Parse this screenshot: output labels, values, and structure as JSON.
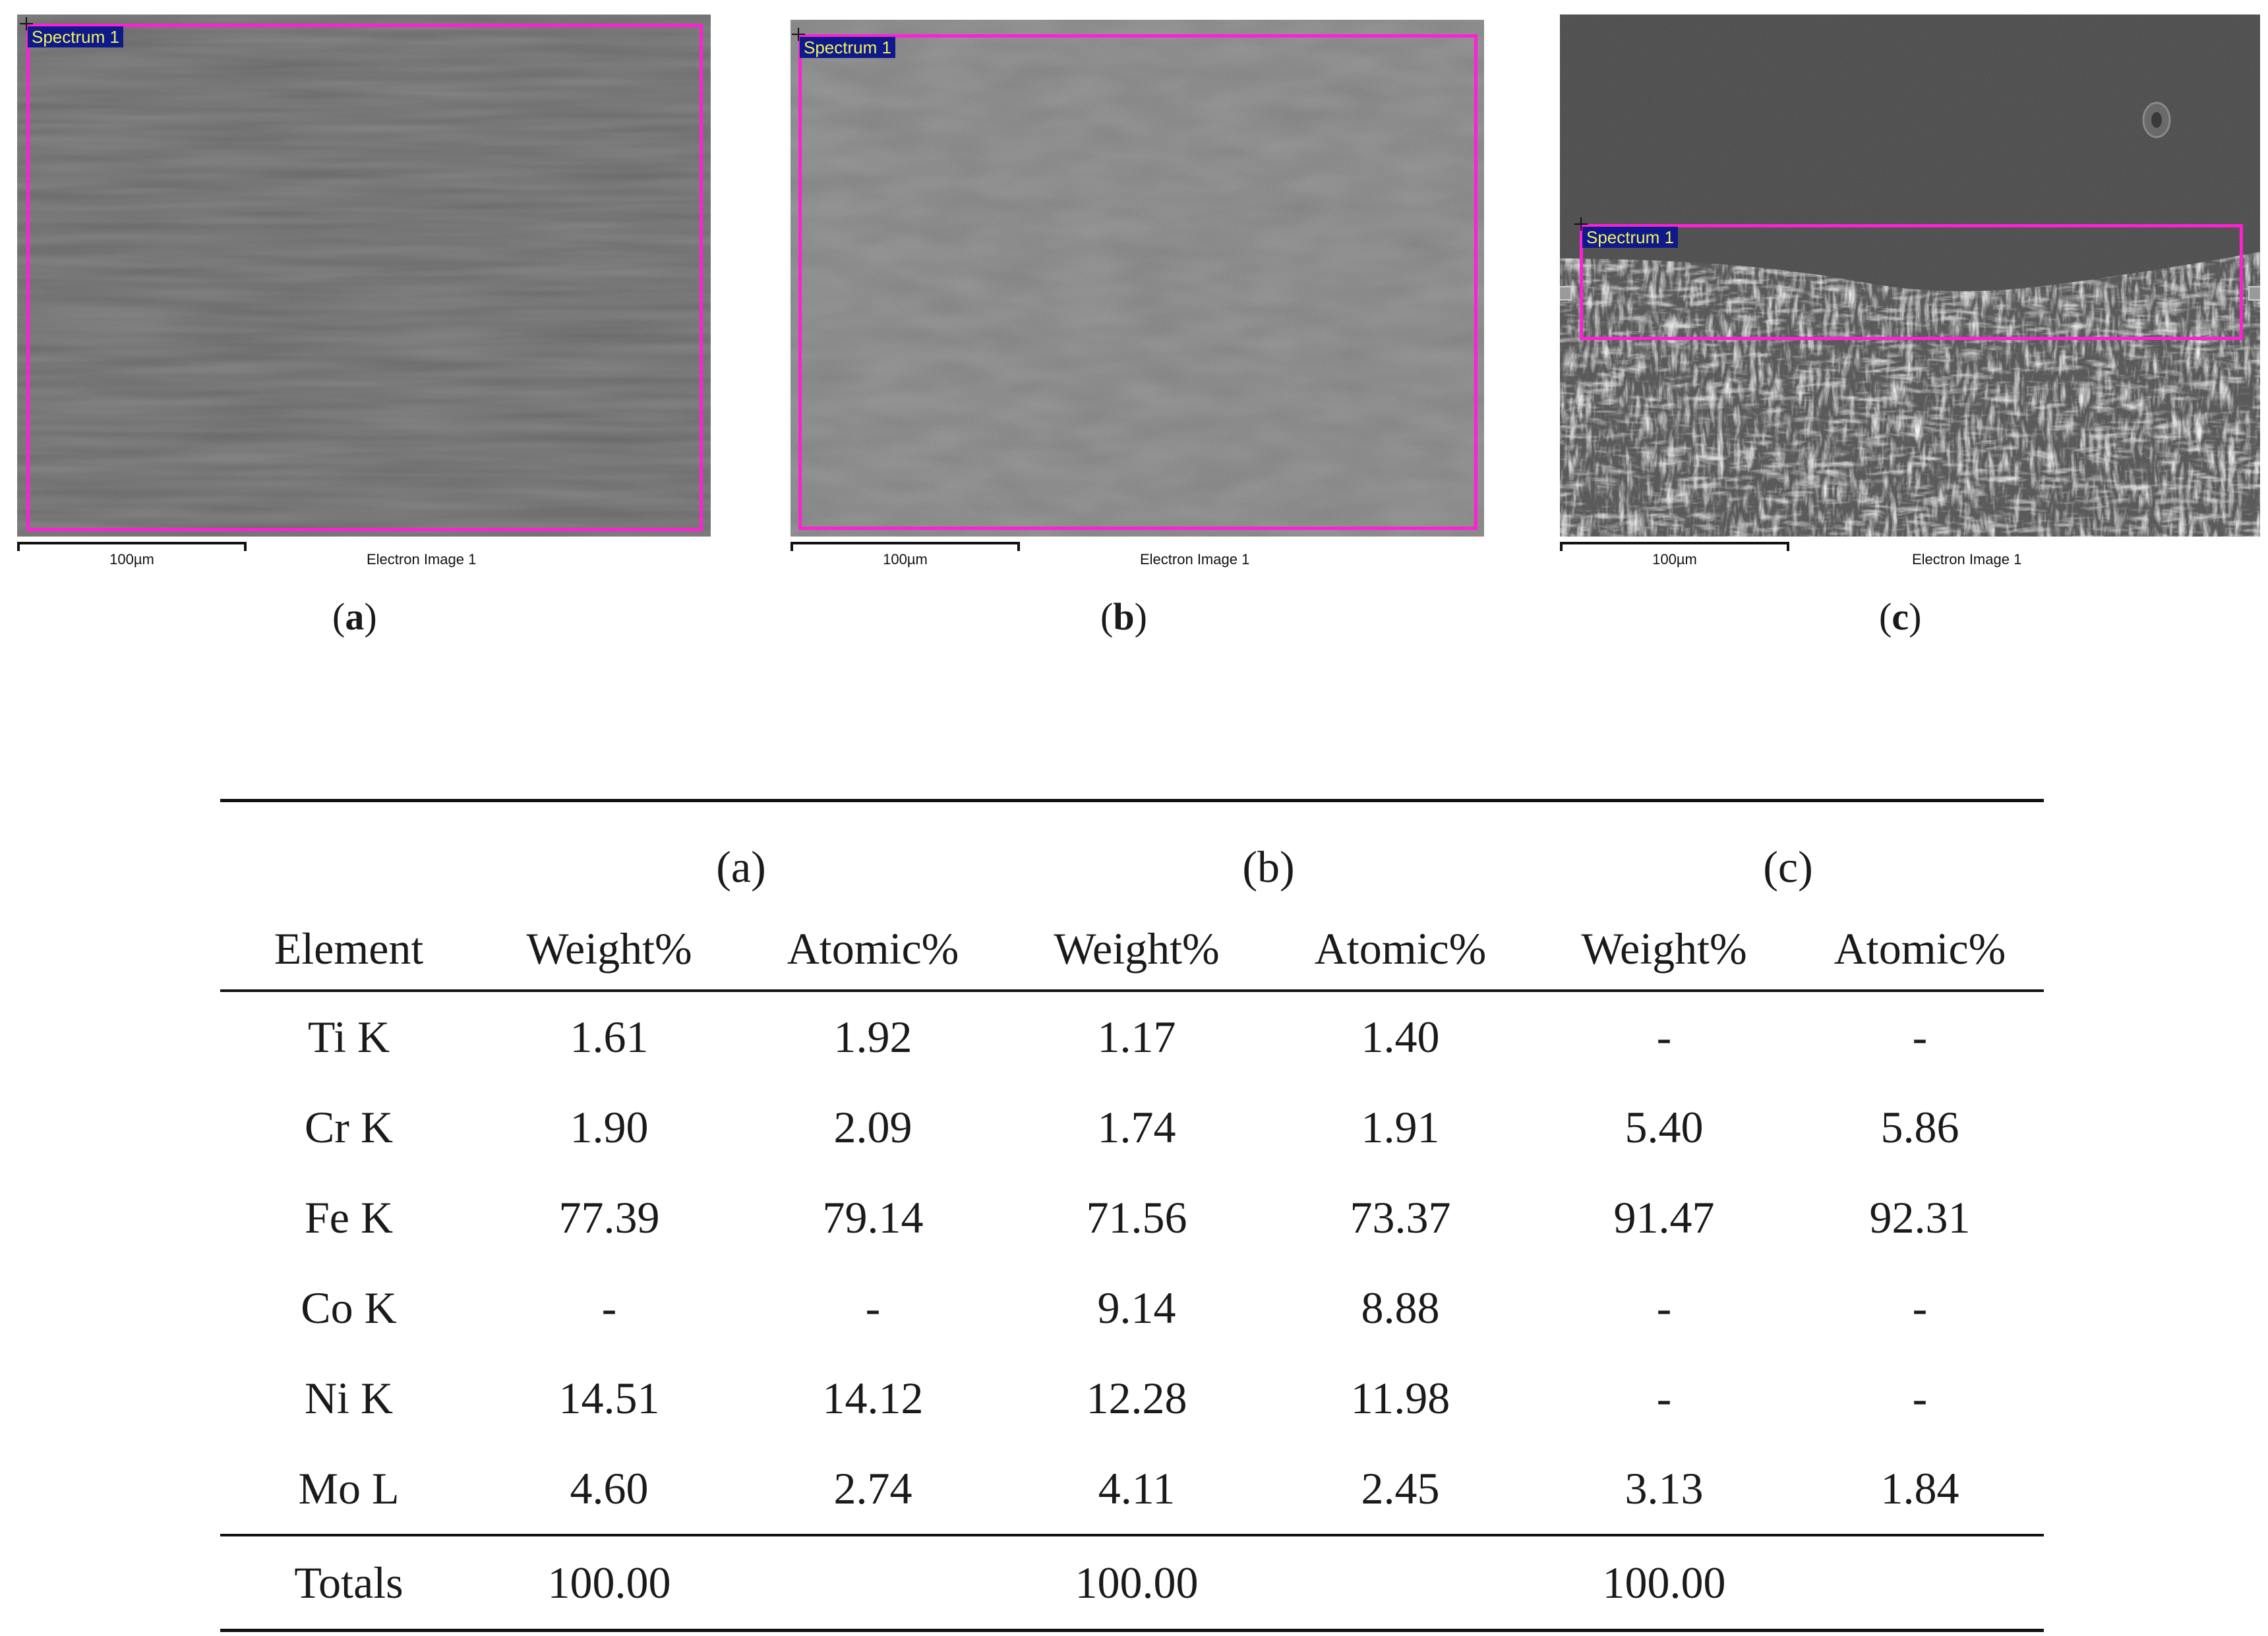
{
  "panels": [
    {
      "id": "a",
      "spectrum_label": "Spectrum 1",
      "scale_label": "100µm",
      "image_caption": "Electron Image 1",
      "label_open": "(",
      "label_letter": "a",
      "label_close": ")"
    },
    {
      "id": "b",
      "spectrum_label": "Spectrum 1",
      "scale_label": "100µm",
      "image_caption": "Electron Image 1",
      "label_open": "(",
      "label_letter": "b",
      "label_close": ")"
    },
    {
      "id": "c",
      "spectrum_label": "Spectrum 1",
      "scale_label": "100µm",
      "image_caption": "Electron Image 1",
      "label_open": "(",
      "label_letter": "c",
      "label_close": ")"
    }
  ],
  "colors": {
    "spectrum_box": "#ff1fd6",
    "spectrum_tag_bg": "#0f1a8a",
    "spectrum_tag_text": "#f2f25a"
  },
  "table": {
    "element_header": "Element",
    "groups": [
      "(a)",
      "(b)",
      "(c)"
    ],
    "subheaders": [
      "Weight%",
      "Atomic%",
      "Weight%",
      "Atomic%",
      "Weight%",
      "Atomic%"
    ],
    "rows": [
      {
        "element": "Ti K",
        "values": [
          "1.61",
          "1.92",
          "1.17",
          "1.40",
          "-",
          "-"
        ]
      },
      {
        "element": "Cr K",
        "values": [
          "1.90",
          "2.09",
          "1.74",
          "1.91",
          "5.40",
          "5.86"
        ]
      },
      {
        "element": "Fe K",
        "values": [
          "77.39",
          "79.14",
          "71.56",
          "73.37",
          "91.47",
          "92.31"
        ]
      },
      {
        "element": "Co K",
        "values": [
          "-",
          "-",
          "9.14",
          "8.88",
          "-",
          "-"
        ]
      },
      {
        "element": "Ni K",
        "values": [
          "14.51",
          "14.12",
          "12.28",
          "11.98",
          "-",
          "-"
        ]
      },
      {
        "element": "Mo L",
        "values": [
          "4.60",
          "2.74",
          "4.11",
          "2.45",
          "3.13",
          "1.84"
        ]
      }
    ],
    "totals": {
      "label": "Totals",
      "values": [
        "100.00",
        "",
        "100.00",
        "",
        "100.00",
        ""
      ]
    }
  }
}
